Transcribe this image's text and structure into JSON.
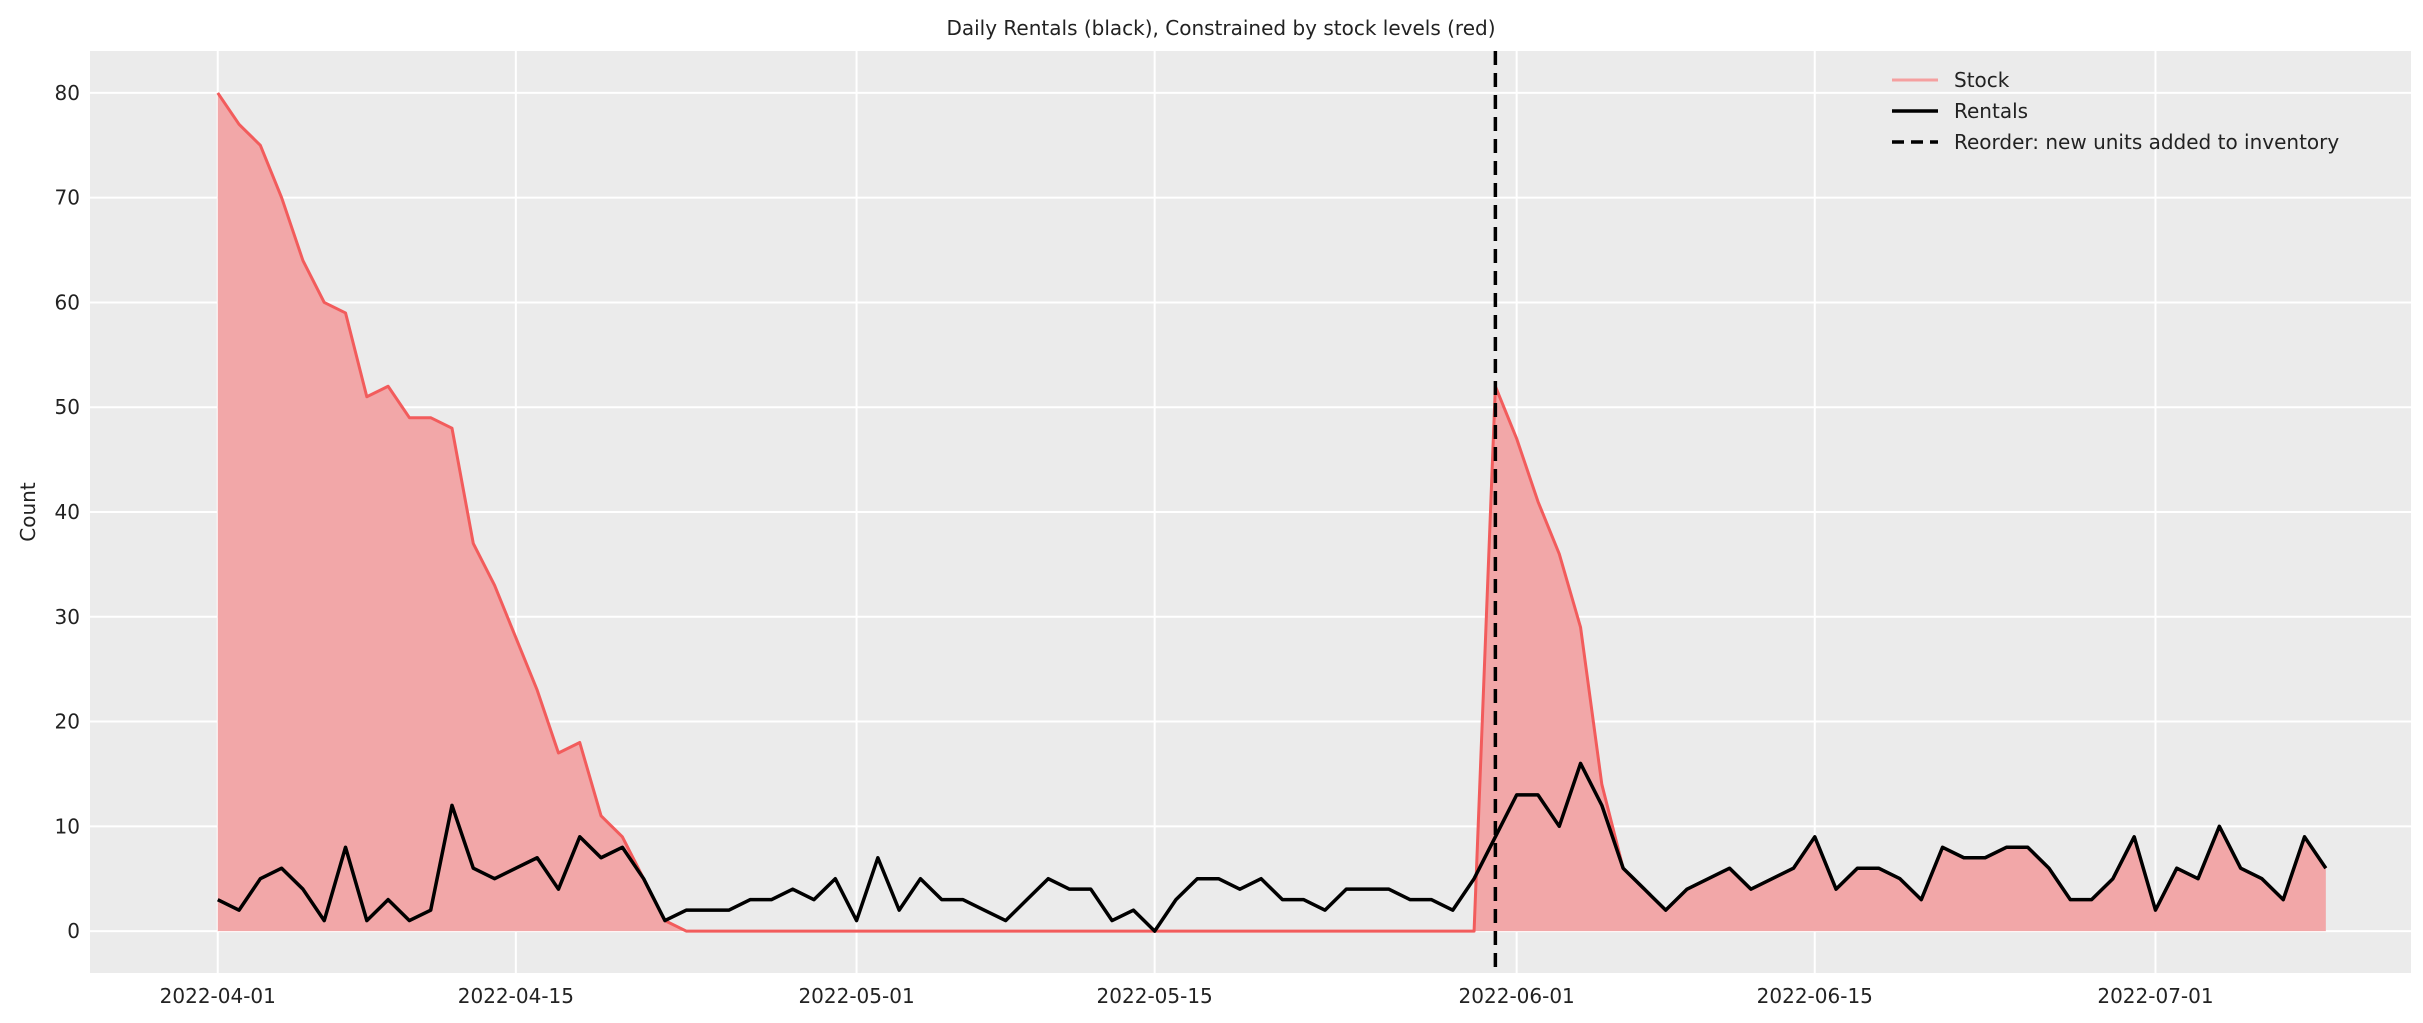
{
  "chart_data": {
    "type": "area",
    "title": "Daily Rentals (black), Constrained by stock levels (red)",
    "xlabel": "",
    "ylabel": "Count",
    "x_range": [
      "2022-03-26",
      "2022-07-13"
    ],
    "ylim": [
      -4,
      84
    ],
    "xticks": [
      "2022-04-01",
      "2022-04-15",
      "2022-05-01",
      "2022-05-15",
      "2022-06-01",
      "2022-06-15",
      "2022-07-01"
    ],
    "yticks": [
      0,
      10,
      20,
      30,
      40,
      50,
      60,
      70,
      80
    ],
    "grid": true,
    "legend_position": "top-right",
    "start_date": "2022-04-01",
    "reorder_date": "2022-05-31",
    "series": [
      {
        "name": "Stock",
        "color": "#f25c5c",
        "fill": "#f2a7a8",
        "values": [
          80,
          77,
          75,
          70,
          64,
          60,
          59,
          51,
          52,
          49,
          49,
          48,
          37,
          33,
          28,
          23,
          17,
          18,
          11,
          9,
          5,
          1,
          0,
          0,
          0,
          0,
          0,
          0,
          0,
          0,
          0,
          0,
          0,
          0,
          0,
          0,
          0,
          0,
          0,
          0,
          0,
          0,
          0,
          0,
          0,
          0,
          0,
          0,
          0,
          0,
          0,
          0,
          0,
          0,
          0,
          0,
          0,
          0,
          0,
          0,
          52,
          47,
          41,
          36,
          29,
          14,
          6,
          4,
          2,
          4,
          5,
          6,
          4,
          5,
          6,
          9,
          4,
          6,
          6,
          5,
          3,
          8,
          7,
          7,
          8,
          8,
          6,
          3,
          3,
          5,
          9,
          2,
          6,
          5,
          10,
          6,
          5,
          3,
          9,
          6
        ]
      },
      {
        "name": "Rentals",
        "color": "#000000",
        "values": [
          3,
          2,
          5,
          6,
          4,
          1,
          8,
          1,
          3,
          1,
          2,
          12,
          6,
          5,
          6,
          7,
          4,
          9,
          7,
          8,
          5,
          1,
          2,
          2,
          2,
          3,
          3,
          4,
          3,
          5,
          1,
          7,
          2,
          5,
          3,
          3,
          2,
          1,
          3,
          5,
          4,
          4,
          1,
          2,
          0,
          3,
          5,
          5,
          4,
          5,
          3,
          3,
          2,
          4,
          4,
          4,
          3,
          3,
          2,
          5,
          9,
          13,
          13,
          10,
          16,
          12,
          6,
          4,
          2,
          4,
          5,
          6,
          4,
          5,
          6,
          9,
          4,
          6,
          6,
          5,
          3,
          8,
          7,
          7,
          8,
          8,
          6,
          3,
          3,
          5,
          9,
          2,
          6,
          5,
          10,
          6,
          5,
          3,
          9,
          6
        ]
      },
      {
        "name": "Reorder: new units added to inventory",
        "color": "#000000",
        "style": "dashed"
      }
    ]
  }
}
